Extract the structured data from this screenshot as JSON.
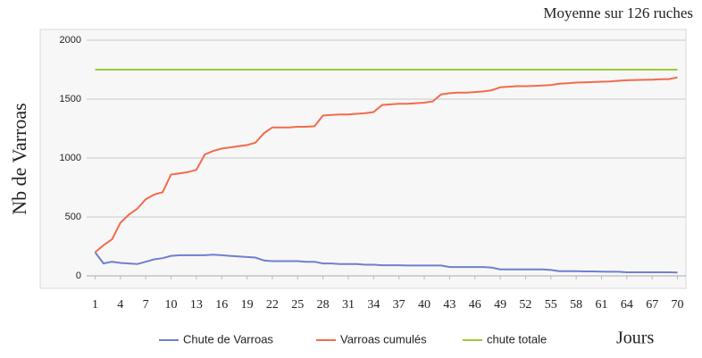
{
  "chart_data": {
    "type": "line",
    "annotation": "Moyenne sur 126 ruches",
    "y_label": "Nb de Varroas",
    "x_label": "Jours",
    "x": [
      1,
      2,
      3,
      4,
      5,
      6,
      7,
      8,
      9,
      10,
      11,
      12,
      13,
      14,
      15,
      16,
      17,
      18,
      19,
      20,
      21,
      22,
      23,
      24,
      25,
      26,
      27,
      28,
      29,
      30,
      31,
      32,
      33,
      34,
      35,
      36,
      37,
      38,
      39,
      40,
      41,
      42,
      43,
      44,
      45,
      46,
      47,
      48,
      49,
      50,
      51,
      52,
      53,
      54,
      55,
      56,
      57,
      58,
      59,
      60,
      61,
      62,
      63,
      64,
      65,
      66,
      67,
      68,
      69,
      70
    ],
    "series": [
      {
        "name": "Chute de Varroas",
        "color": "#6f7fd0",
        "values": [
          200,
          105,
          120,
          110,
          105,
          100,
          120,
          140,
          150,
          170,
          175,
          175,
          175,
          175,
          180,
          175,
          170,
          165,
          160,
          155,
          130,
          125,
          125,
          125,
          125,
          120,
          120,
          105,
          105,
          100,
          100,
          100,
          95,
          95,
          90,
          90,
          90,
          88,
          88,
          88,
          88,
          88,
          75,
          75,
          75,
          75,
          75,
          70,
          55,
          55,
          55,
          55,
          55,
          55,
          50,
          40,
          40,
          40,
          38,
          38,
          36,
          35,
          35,
          30,
          30,
          30,
          30,
          30,
          30,
          28
        ]
      },
      {
        "name": "Varroas cumulés",
        "color": "#f26b4b",
        "values": [
          200,
          260,
          310,
          450,
          520,
          570,
          650,
          690,
          710,
          860,
          870,
          880,
          900,
          1030,
          1060,
          1080,
          1090,
          1100,
          1110,
          1130,
          1210,
          1260,
          1260,
          1260,
          1265,
          1265,
          1270,
          1360,
          1365,
          1370,
          1370,
          1375,
          1380,
          1390,
          1450,
          1455,
          1460,
          1460,
          1465,
          1470,
          1480,
          1540,
          1550,
          1555,
          1555,
          1560,
          1565,
          1575,
          1600,
          1605,
          1610,
          1610,
          1612,
          1615,
          1620,
          1630,
          1635,
          1640,
          1642,
          1645,
          1648,
          1650,
          1655,
          1660,
          1662,
          1664,
          1665,
          1668,
          1670,
          1685
        ]
      },
      {
        "name": "chute totale",
        "color": "#9acd32",
        "values": [
          1750,
          1750,
          1750,
          1750,
          1750,
          1750,
          1750,
          1750,
          1750,
          1750,
          1750,
          1750,
          1750,
          1750,
          1750,
          1750,
          1750,
          1750,
          1750,
          1750,
          1750,
          1750,
          1750,
          1750,
          1750,
          1750,
          1750,
          1750,
          1750,
          1750,
          1750,
          1750,
          1750,
          1750,
          1750,
          1750,
          1750,
          1750,
          1750,
          1750,
          1750,
          1750,
          1750,
          1750,
          1750,
          1750,
          1750,
          1750,
          1750,
          1750,
          1750,
          1750,
          1750,
          1750,
          1750,
          1750,
          1750,
          1750,
          1750,
          1750,
          1750,
          1750,
          1750,
          1750,
          1750,
          1750,
          1750,
          1750,
          1750,
          1750
        ]
      }
    ],
    "xlim": [
      0,
      71
    ],
    "xticks": [
      1,
      4,
      7,
      10,
      13,
      16,
      19,
      22,
      25,
      28,
      31,
      34,
      37,
      40,
      43,
      46,
      49,
      52,
      55,
      58,
      61,
      64,
      67,
      70
    ],
    "ylim": [
      0,
      2000
    ],
    "yticks": [
      0,
      500,
      1000,
      1500,
      2000
    ],
    "grid": true
  }
}
